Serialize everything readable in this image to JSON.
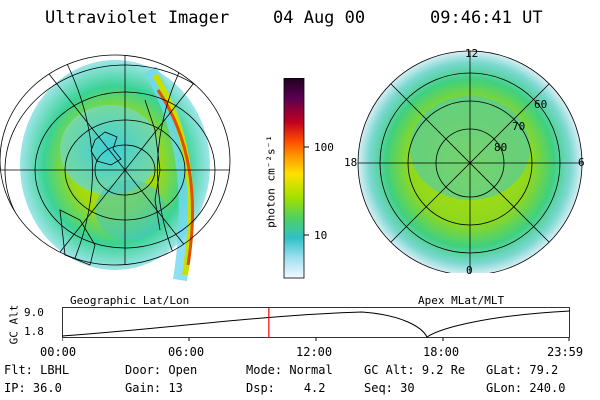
{
  "header": {
    "instrument": "Ultraviolet Imager",
    "date": "04 Aug 00",
    "time": "09:46:41 UT"
  },
  "colorbar": {
    "unit_label": "photon cm⁻²s⁻¹",
    "ticks": [
      "100",
      "10"
    ]
  },
  "left_panel": {
    "caption": "Geographic Lat/Lon"
  },
  "right_panel": {
    "caption": "Apex MLat/MLT",
    "mlt_labels": [
      "12",
      "18",
      "6",
      "0"
    ],
    "lat_labels": [
      "60",
      "70",
      "80"
    ]
  },
  "altitude_plot": {
    "ylabel": "GC Alt",
    "yticks": [
      "9.0",
      "1.8"
    ],
    "xticks": [
      "00:00",
      "06:00",
      "12:00",
      "18:00",
      "23:59"
    ],
    "current_time_fraction": 0.407,
    "marker_color": "#ff0000"
  },
  "status": {
    "row1": [
      {
        "label": "Flt:",
        "value": "LBHL"
      },
      {
        "label": "Door:",
        "value": "Open"
      },
      {
        "label": "Mode:",
        "value": "Normal"
      },
      {
        "label": "GC Alt:",
        "value": "9.2 Re"
      },
      {
        "label": "GLat:",
        "value": "79.2"
      }
    ],
    "row2": [
      {
        "label": "IP:",
        "value": "36.0"
      },
      {
        "label": "Gain:",
        "value": "13"
      },
      {
        "label": "Dsp:",
        "value": "4.2"
      },
      {
        "label": "Seq:",
        "value": "30"
      },
      {
        "label": "GLon:",
        "value": "240.0"
      }
    ]
  }
}
